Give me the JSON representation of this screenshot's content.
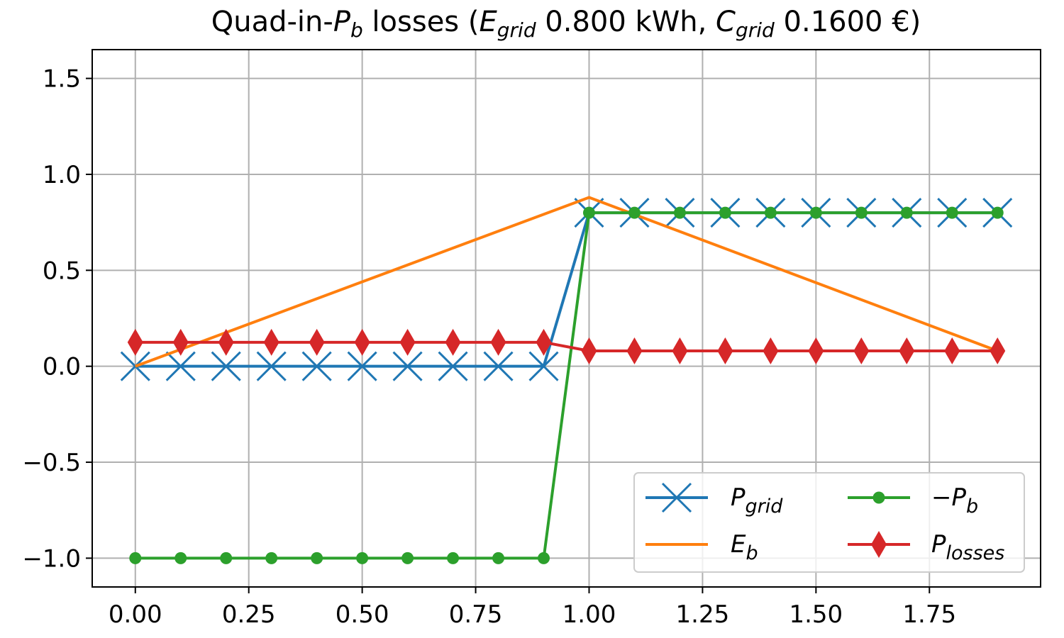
{
  "chart_data": {
    "type": "line",
    "title": {
      "text": "Quad-in-Pb losses (Egrid 0.800 kWh, Cgrid 0.1600 €)",
      "parts": [
        {
          "t": "Quad-in-",
          "style": "normal"
        },
        {
          "t": "P",
          "style": "italic"
        },
        {
          "t": "b",
          "style": "sub-italic"
        },
        {
          "t": " losses (",
          "style": "normal"
        },
        {
          "t": "E",
          "style": "italic"
        },
        {
          "t": "grid",
          "style": "sub-italic"
        },
        {
          "t": " 0.800 kWh, ",
          "style": "normal"
        },
        {
          "t": "C",
          "style": "italic"
        },
        {
          "t": "grid",
          "style": "sub-italic"
        },
        {
          "t": " 0.1600 €)",
          "style": "normal"
        }
      ]
    },
    "xlabel": "",
    "ylabel": "",
    "xlim": [
      -0.095,
      1.995
    ],
    "ylim": [
      -1.15,
      1.65
    ],
    "xticks": [
      0.0,
      0.25,
      0.5,
      0.75,
      1.0,
      1.25,
      1.5,
      1.75
    ],
    "xtick_labels": [
      "0.00",
      "0.25",
      "0.50",
      "0.75",
      "1.00",
      "1.25",
      "1.50",
      "1.75"
    ],
    "yticks": [
      -1.0,
      -0.5,
      0.0,
      0.5,
      1.0,
      1.5
    ],
    "ytick_labels": [
      "−1.0",
      "−0.5",
      "0.0",
      "0.5",
      "1.0",
      "1.5"
    ],
    "grid": true,
    "legend_placement": "lower-right",
    "legend_columns": 2,
    "x": [
      0.0,
      0.1,
      0.2,
      0.3,
      0.4,
      0.5,
      0.6,
      0.7,
      0.8,
      0.9,
      1.0,
      1.1,
      1.2,
      1.3,
      1.4,
      1.5,
      1.6,
      1.7,
      1.8,
      1.9
    ],
    "series": [
      {
        "name": "Pgrid",
        "legend_base": "P",
        "legend_sub": "grid",
        "color": "#1f77b4",
        "marker": "x",
        "values": [
          0,
          0,
          0,
          0,
          0,
          0,
          0,
          0,
          0,
          0,
          0.8,
          0.8,
          0.8,
          0.8,
          0.8,
          0.8,
          0.8,
          0.8,
          0.8,
          0.8
        ]
      },
      {
        "name": "Eb",
        "legend_base": "E",
        "legend_sub": "b",
        "color": "#ff7f0e",
        "marker": "none",
        "x": [
          0.0,
          1.0,
          1.9
        ],
        "values": [
          0.0,
          0.88,
          0.08
        ]
      },
      {
        "name": "−Pb",
        "legend_base": "−P",
        "legend_sub": "b",
        "color": "#2ca02c",
        "marker": "o",
        "values": [
          -1,
          -1,
          -1,
          -1,
          -1,
          -1,
          -1,
          -1,
          -1,
          -1,
          0.8,
          0.8,
          0.8,
          0.8,
          0.8,
          0.8,
          0.8,
          0.8,
          0.8,
          0.8
        ]
      },
      {
        "name": "Plosses",
        "legend_base": "P",
        "legend_sub": "losses",
        "color": "#d62728",
        "marker": "d",
        "values": [
          0.125,
          0.125,
          0.125,
          0.125,
          0.125,
          0.125,
          0.125,
          0.125,
          0.125,
          0.125,
          0.08,
          0.08,
          0.08,
          0.08,
          0.08,
          0.08,
          0.08,
          0.08,
          0.08,
          0.08
        ]
      }
    ]
  }
}
